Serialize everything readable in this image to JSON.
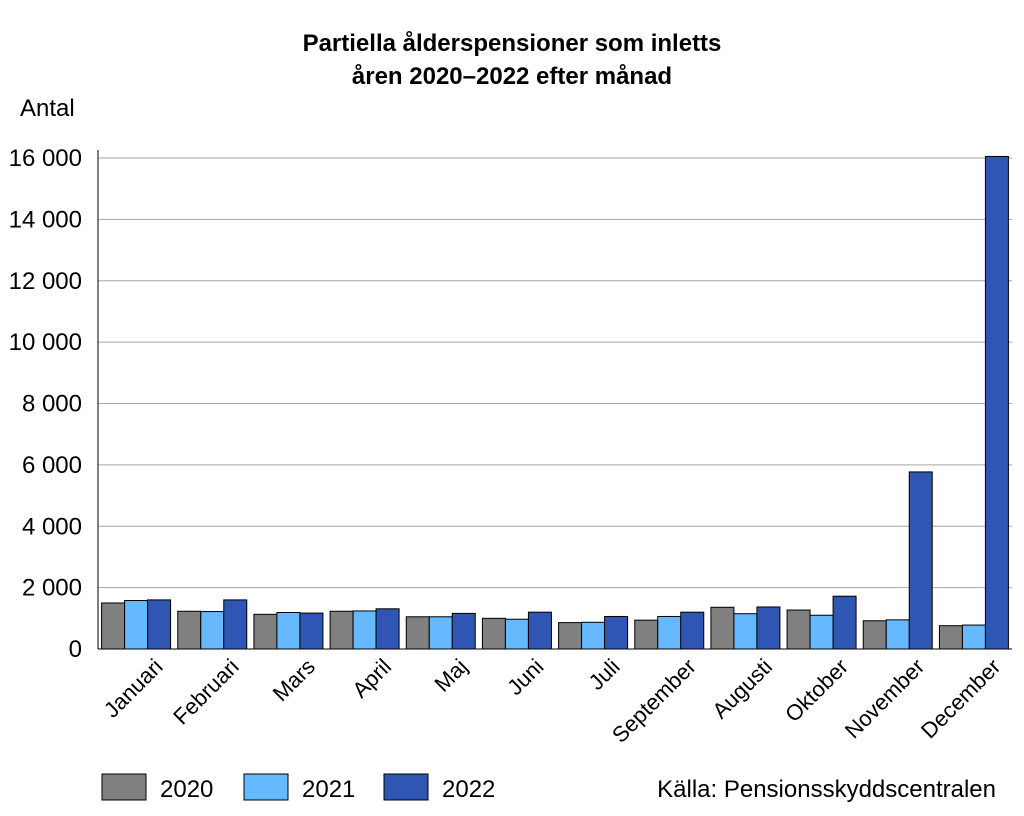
{
  "chart_data": {
    "type": "bar",
    "title_lines": [
      "Partiella ålderspensioner som inletts",
      "åren 2020–2022 efter månad"
    ],
    "ylabel": "Antal",
    "xlabel": "",
    "ylim": [
      0,
      16000
    ],
    "yticks": [
      0,
      2000,
      4000,
      6000,
      8000,
      10000,
      12000,
      14000,
      16000
    ],
    "ytick_labels": [
      "0",
      "2 000",
      "4 000",
      "6 000",
      "8 000",
      "10 000",
      "12 000",
      "14 000",
      "16 000"
    ],
    "grid": true,
    "categories": [
      "Januari",
      "Februari",
      "Mars",
      "April",
      "Maj",
      "Juni",
      "Juli",
      "September",
      "Augusti",
      "Oktober",
      "November",
      "December"
    ],
    "series": [
      {
        "name": "2020",
        "color": "#808080",
        "values": [
          1500,
          1230,
          1130,
          1230,
          1050,
          1000,
          860,
          940,
          1360,
          1270,
          920,
          760
        ]
      },
      {
        "name": "2021",
        "color": "#66b8ff",
        "values": [
          1580,
          1220,
          1190,
          1240,
          1050,
          970,
          870,
          1060,
          1150,
          1100,
          950,
          780
        ]
      },
      {
        "name": "2022",
        "color": "#3056b4",
        "values": [
          1600,
          1600,
          1170,
          1310,
          1160,
          1200,
          1060,
          1200,
          1370,
          1720,
          5770,
          16050
        ]
      }
    ],
    "legend_position": "bottom-left",
    "source": "Källa: Pensionsskyddscentralen"
  }
}
